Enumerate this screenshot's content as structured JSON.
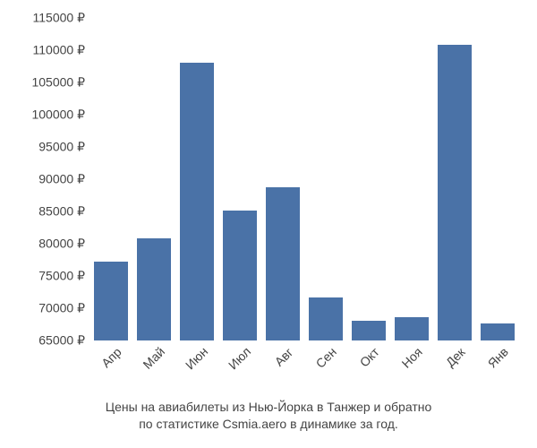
{
  "chart": {
    "type": "bar",
    "background_color": "#ffffff",
    "bar_color": "#4a72a7",
    "text_color": "#444444",
    "label_fontsize": 14,
    "caption_fontsize": 14,
    "bar_width": 0.78,
    "currency_symbol": "₽",
    "ylim": [
      65000,
      115000
    ],
    "ytick_step": 5000,
    "y_ticks": [
      {
        "value": 65000,
        "label": "65000 ₽"
      },
      {
        "value": 70000,
        "label": "70000 ₽"
      },
      {
        "value": 75000,
        "label": "75000 ₽"
      },
      {
        "value": 80000,
        "label": "80000 ₽"
      },
      {
        "value": 85000,
        "label": "85000 ₽"
      },
      {
        "value": 90000,
        "label": "90000 ₽"
      },
      {
        "value": 95000,
        "label": "95000 ₽"
      },
      {
        "value": 100000,
        "label": "100000 ₽"
      },
      {
        "value": 105000,
        "label": "105000 ₽"
      },
      {
        "value": 110000,
        "label": "110000 ₽"
      },
      {
        "value": 115000,
        "label": "115000 ₽"
      }
    ],
    "categories": [
      "Апр",
      "Май",
      "Июн",
      "Июл",
      "Авг",
      "Сен",
      "Окт",
      "Ноя",
      "Дек",
      "Янв"
    ],
    "values": [
      77200,
      80800,
      108000,
      85200,
      88700,
      71600,
      68100,
      68600,
      110800,
      67700
    ],
    "x_tick_rotation_deg": -45,
    "caption_line1": "Цены на авиабилеты из Нью-Йорка в Танжер и обратно",
    "caption_line2": "по статистике Csmia.aero в динамике за год."
  }
}
